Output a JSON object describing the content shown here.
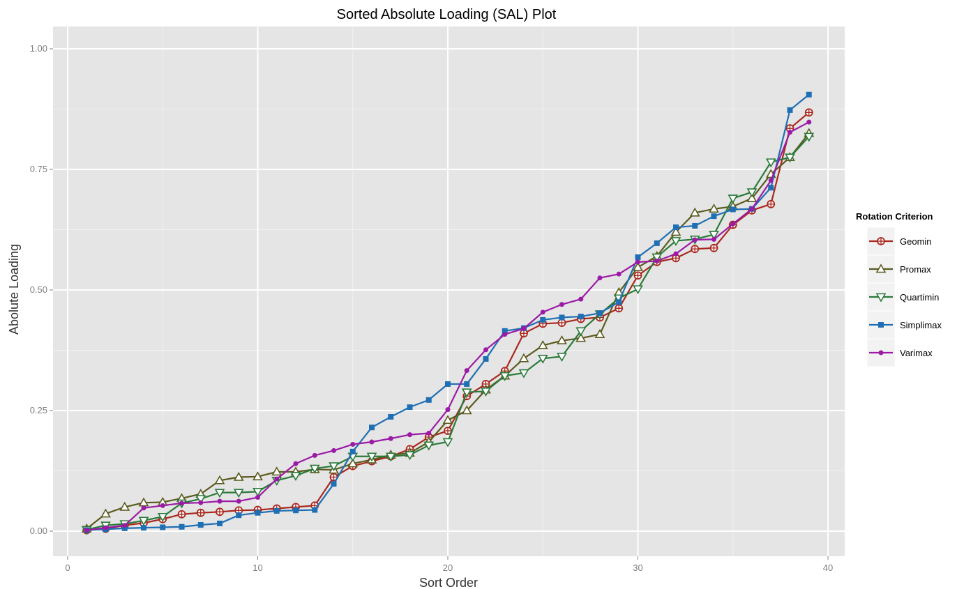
{
  "chart_data": {
    "type": "line",
    "title": "Sorted Absolute Loading (SAL) Plot",
    "xlabel": "Sort Order",
    "ylabel": "Abolute Loading",
    "xlim": [
      0,
      40
    ],
    "ylim": [
      0,
      1
    ],
    "x_ticks": [
      0,
      10,
      20,
      30,
      40
    ],
    "x_tick_labels": [
      "0",
      "10",
      "20",
      "30",
      "40"
    ],
    "y_ticks": [
      0,
      0.25,
      0.5,
      0.75,
      1.0
    ],
    "y_tick_labels": [
      "0.00",
      "0.25",
      "0.50",
      "0.75",
      "1.00"
    ],
    "grid": true,
    "legend": {
      "title": "Rotation Criterion",
      "position": "right"
    },
    "x": [
      1,
      2,
      3,
      4,
      5,
      6,
      7,
      8,
      9,
      10,
      11,
      12,
      13,
      14,
      15,
      16,
      17,
      18,
      19,
      20,
      21,
      22,
      23,
      24,
      25,
      26,
      27,
      28,
      29,
      30,
      31,
      32,
      33,
      34,
      35,
      36,
      37,
      38,
      39
    ],
    "series": [
      {
        "name": "Geomin",
        "color": "#a8281e",
        "marker": "circle-cross",
        "values": [
          0.002,
          0.005,
          0.012,
          0.017,
          0.025,
          0.035,
          0.038,
          0.04,
          0.043,
          0.044,
          0.047,
          0.05,
          0.053,
          0.112,
          0.135,
          0.145,
          0.155,
          0.17,
          0.195,
          0.208,
          0.28,
          0.305,
          0.332,
          0.41,
          0.43,
          0.432,
          0.44,
          0.443,
          0.462,
          0.53,
          0.558,
          0.566,
          0.585,
          0.587,
          0.635,
          0.665,
          0.678,
          0.835,
          0.868
        ]
      },
      {
        "name": "Promax",
        "color": "#5a5a1e",
        "marker": "triangle-up",
        "values": [
          0.005,
          0.036,
          0.05,
          0.059,
          0.06,
          0.068,
          0.077,
          0.105,
          0.112,
          0.113,
          0.123,
          0.123,
          0.128,
          0.127,
          0.14,
          0.148,
          0.158,
          0.162,
          0.185,
          0.23,
          0.25,
          0.293,
          0.322,
          0.358,
          0.385,
          0.395,
          0.4,
          0.408,
          0.495,
          0.547,
          0.57,
          0.62,
          0.66,
          0.668,
          0.673,
          0.69,
          0.74,
          0.775,
          0.825
        ]
      },
      {
        "name": "Quartimin",
        "color": "#2a7a3a",
        "marker": "triangle-down",
        "values": [
          0.003,
          0.012,
          0.015,
          0.022,
          0.03,
          0.058,
          0.067,
          0.08,
          0.08,
          0.082,
          0.105,
          0.115,
          0.13,
          0.135,
          0.155,
          0.155,
          0.155,
          0.158,
          0.178,
          0.185,
          0.288,
          0.29,
          0.322,
          0.328,
          0.358,
          0.362,
          0.415,
          0.45,
          0.483,
          0.502,
          0.568,
          0.602,
          0.605,
          0.615,
          0.69,
          0.703,
          0.765,
          0.775,
          0.818
        ]
      },
      {
        "name": "Simplimax",
        "color": "#1f6fb4",
        "marker": "square",
        "values": [
          0.002,
          0.004,
          0.006,
          0.007,
          0.008,
          0.009,
          0.013,
          0.016,
          0.033,
          0.038,
          0.042,
          0.043,
          0.044,
          0.098,
          0.165,
          0.215,
          0.237,
          0.257,
          0.272,
          0.305,
          0.305,
          0.357,
          0.415,
          0.421,
          0.438,
          0.443,
          0.445,
          0.452,
          0.475,
          0.568,
          0.597,
          0.63,
          0.633,
          0.653,
          0.667,
          0.668,
          0.712,
          0.873,
          0.905
        ]
      },
      {
        "name": "Varimax",
        "color": "#9b1aa6",
        "marker": "dot",
        "values": [
          0.002,
          0.007,
          0.012,
          0.048,
          0.053,
          0.058,
          0.059,
          0.062,
          0.062,
          0.07,
          0.108,
          0.14,
          0.157,
          0.167,
          0.18,
          0.185,
          0.192,
          0.2,
          0.203,
          0.252,
          0.333,
          0.376,
          0.408,
          0.42,
          0.454,
          0.47,
          0.481,
          0.525,
          0.533,
          0.558,
          0.56,
          0.575,
          0.604,
          0.605,
          0.637,
          0.668,
          0.727,
          0.827,
          0.848
        ]
      }
    ]
  }
}
